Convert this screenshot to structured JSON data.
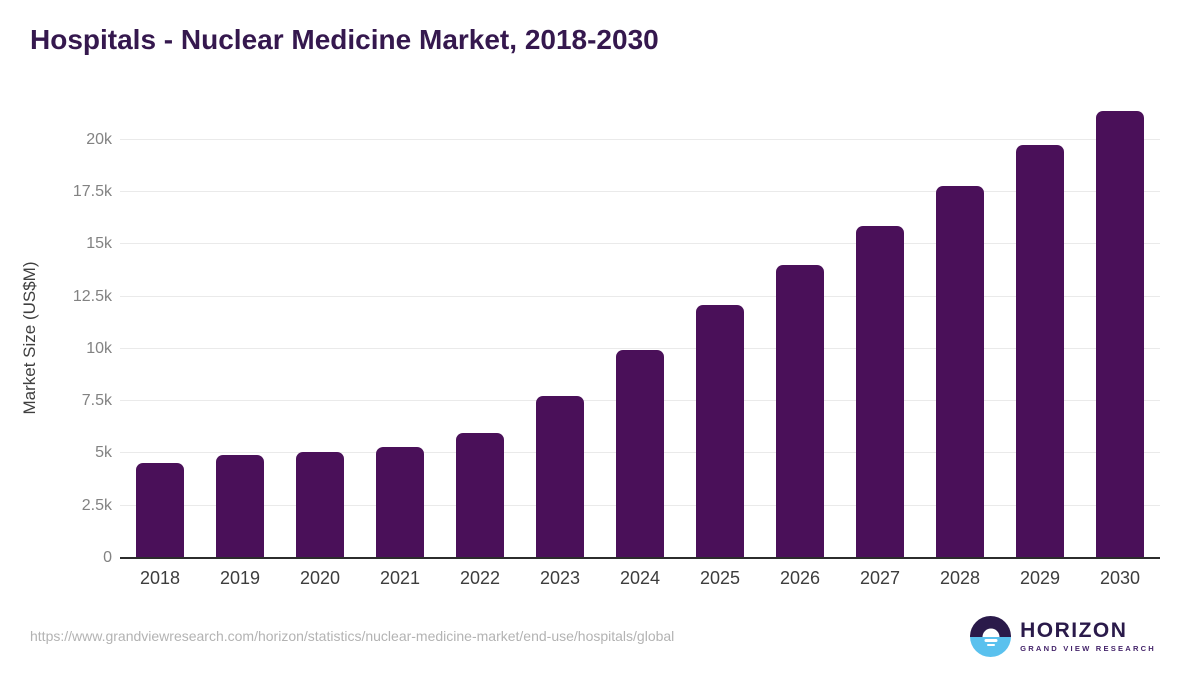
{
  "title": "Hospitals - Nuclear Medicine Market, 2018-2030",
  "chart_data": {
    "type": "bar",
    "title": "Hospitals - Nuclear Medicine Market, 2018-2030",
    "categories": [
      "2018",
      "2019",
      "2020",
      "2021",
      "2022",
      "2023",
      "2024",
      "2025",
      "2026",
      "2027",
      "2028",
      "2029",
      "2030"
    ],
    "values": [
      4550,
      4950,
      5050,
      5300,
      6000,
      7750,
      9950,
      12100,
      14000,
      15900,
      17800,
      19750,
      21400
    ],
    "xlabel": "",
    "ylabel": "Market Size (US$M)",
    "ylim": [
      0,
      22000
    ],
    "yticks": [
      {
        "value": 0,
        "label": "0"
      },
      {
        "value": 2500,
        "label": "2.5k"
      },
      {
        "value": 5000,
        "label": "5k"
      },
      {
        "value": 7500,
        "label": "7.5k"
      },
      {
        "value": 10000,
        "label": "10k"
      },
      {
        "value": 12500,
        "label": "12.5k"
      },
      {
        "value": 15000,
        "label": "15k"
      },
      {
        "value": 17500,
        "label": "17.5k"
      },
      {
        "value": 20000,
        "label": "20k"
      }
    ],
    "grid": "horizontal",
    "legend_position": "none",
    "bar_color": "#4a1059"
  },
  "footer": {
    "source_url": "https://www.grandviewresearch.com/horizon/statistics/nuclear-medicine-market/end-use/hospitals/global",
    "logo": {
      "name": "HORIZON",
      "tagline": "GRAND VIEW RESEARCH"
    }
  },
  "colors": {
    "bar": "#4a1059",
    "title_text": "#35184e",
    "gridline": "#eaeaea",
    "axis_line": "#2c2c2c",
    "y_tick_text": "#828282",
    "x_tick_text": "#3d3d3d",
    "url_text": "#b3b3b3",
    "logo_purple": "#2a1a4a",
    "logo_blue": "#5ac1ee"
  }
}
